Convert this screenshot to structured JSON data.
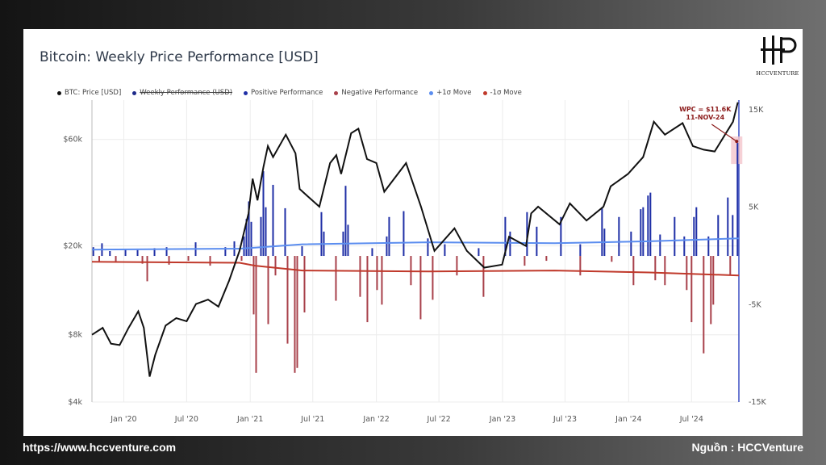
{
  "footer": {
    "url": "https://www.hccventure.com",
    "source": "Nguồn : HCCVenture"
  },
  "logo": {
    "text": "HCCVENTURE"
  },
  "colors": {
    "price": "#111111",
    "positive": "#1f2fa6",
    "negative": "#a8404a",
    "plus_sigma": "#5b8def",
    "minus_sigma": "#c0392b",
    "weekly": "#1d2a8a"
  },
  "chart_data": {
    "type": "line",
    "title": "Bitcoin: Weekly Price Performance [USD]",
    "legend": [
      {
        "key": "price",
        "label": "BTC: Price [USD]"
      },
      {
        "key": "weekly",
        "label": "Weekly Performance (USD)",
        "hidden": true
      },
      {
        "key": "positive",
        "label": "Positive Performance"
      },
      {
        "key": "negative",
        "label": "Negative Performance"
      },
      {
        "key": "plus_sigma",
        "label": "+1σ Move"
      },
      {
        "key": "minus_sigma",
        "label": "-1σ Move"
      }
    ],
    "legend_position": "top-left",
    "x_ticks": [
      "Jan '20",
      "Jul '20",
      "Jan '21",
      "Jul '21",
      "Jan '22",
      "Jul '22",
      "Jan '23",
      "Jul '23",
      "Jan '24",
      "Jul '24"
    ],
    "x_range": [
      "2019-10-01",
      "2024-11-15"
    ],
    "left_axis": {
      "scale": "log",
      "ticks": [
        {
          "v": 4000,
          "label": "$4k"
        },
        {
          "v": 8000,
          "label": "$8k"
        },
        {
          "v": 20000,
          "label": "$20k"
        },
        {
          "v": 60000,
          "label": "$60k"
        }
      ],
      "range": [
        4000,
        90000
      ]
    },
    "right_axis": {
      "ticks": [
        {
          "v": 15000,
          "label": "15K"
        },
        {
          "v": 5000,
          "label": "5K"
        },
        {
          "v": -5000,
          "label": "-5K"
        },
        {
          "v": -15000,
          "label": "-15K"
        }
      ],
      "range": [
        -15000,
        16000
      ]
    },
    "price_series": {
      "name": "BTC: Price [USD]",
      "points": [
        [
          "2019-10-01",
          8000
        ],
        [
          "2019-11-01",
          8600
        ],
        [
          "2019-11-25",
          7300
        ],
        [
          "2019-12-20",
          7200
        ],
        [
          "2020-01-15",
          8600
        ],
        [
          "2020-02-12",
          10200
        ],
        [
          "2020-02-28",
          8600
        ],
        [
          "2020-03-16",
          5200
        ],
        [
          "2020-04-01",
          6500
        ],
        [
          "2020-05-01",
          8800
        ],
        [
          "2020-06-01",
          9500
        ],
        [
          "2020-07-01",
          9200
        ],
        [
          "2020-07-28",
          11000
        ],
        [
          "2020-09-01",
          11500
        ],
        [
          "2020-10-01",
          10700
        ],
        [
          "2020-11-01",
          14000
        ],
        [
          "2020-12-01",
          19000
        ],
        [
          "2020-12-27",
          28000
        ],
        [
          "2021-01-08",
          40000
        ],
        [
          "2021-01-22",
          32000
        ],
        [
          "2021-02-08",
          45000
        ],
        [
          "2021-02-21",
          56000
        ],
        [
          "2021-03-08",
          50000
        ],
        [
          "2021-04-14",
          63000
        ],
        [
          "2021-05-12",
          52000
        ],
        [
          "2021-05-24",
          36000
        ],
        [
          "2021-06-20",
          33000
        ],
        [
          "2021-07-20",
          30000
        ],
        [
          "2021-08-20",
          47000
        ],
        [
          "2021-09-07",
          51000
        ],
        [
          "2021-09-21",
          42000
        ],
        [
          "2021-10-20",
          64000
        ],
        [
          "2021-11-10",
          67000
        ],
        [
          "2021-12-05",
          49000
        ],
        [
          "2022-01-01",
          47000
        ],
        [
          "2022-01-24",
          35000
        ],
        [
          "2022-03-28",
          47000
        ],
        [
          "2022-05-10",
          30000
        ],
        [
          "2022-06-18",
          19000
        ],
        [
          "2022-08-15",
          24000
        ],
        [
          "2022-09-20",
          19000
        ],
        [
          "2022-11-09",
          16000
        ],
        [
          "2022-12-31",
          16500
        ],
        [
          "2023-01-20",
          22000
        ],
        [
          "2023-03-10",
          20000
        ],
        [
          "2023-03-25",
          28000
        ],
        [
          "2023-04-14",
          30000
        ],
        [
          "2023-06-15",
          25000
        ],
        [
          "2023-07-15",
          31000
        ],
        [
          "2023-09-01",
          26000
        ],
        [
          "2023-10-20",
          30000
        ],
        [
          "2023-11-10",
          37000
        ],
        [
          "2023-12-30",
          42000
        ],
        [
          "2024-02-12",
          50000
        ],
        [
          "2024-03-14",
          72000
        ],
        [
          "2024-04-15",
          63000
        ],
        [
          "2024-06-05",
          71000
        ],
        [
          "2024-07-05",
          56000
        ],
        [
          "2024-08-05",
          54000
        ],
        [
          "2024-09-06",
          53000
        ],
        [
          "2024-10-29",
          72000
        ],
        [
          "2024-11-12",
          88000
        ]
      ]
    },
    "weekly_performance": {
      "positive": [
        [
          "2019-10-05",
          900
        ],
        [
          "2019-10-30",
          1300
        ],
        [
          "2019-11-22",
          500
        ],
        [
          "2020-01-06",
          700
        ],
        [
          "2020-02-10",
          600
        ],
        [
          "2020-03-30",
          800
        ],
        [
          "2020-05-04",
          900
        ],
        [
          "2020-07-27",
          1400
        ],
        [
          "2020-10-21",
          900
        ],
        [
          "2020-11-16",
          1500
        ],
        [
          "2020-12-14",
          2000
        ],
        [
          "2020-12-21",
          3800
        ],
        [
          "2020-12-28",
          5600
        ],
        [
          "2021-01-04",
          3500
        ],
        [
          "2021-02-01",
          4000
        ],
        [
          "2021-02-08",
          8700
        ],
        [
          "2021-02-15",
          5000
        ],
        [
          "2021-03-08",
          7300
        ],
        [
          "2021-04-12",
          4900
        ],
        [
          "2021-05-31",
          1000
        ],
        [
          "2021-07-26",
          4500
        ],
        [
          "2021-08-02",
          2500
        ],
        [
          "2021-09-27",
          2500
        ],
        [
          "2021-10-04",
          7200
        ],
        [
          "2021-10-11",
          3200
        ],
        [
          "2021-12-20",
          800
        ],
        [
          "2022-01-31",
          2000
        ],
        [
          "2022-02-07",
          4000
        ],
        [
          "2022-03-21",
          4600
        ],
        [
          "2022-05-30",
          1800
        ],
        [
          "2022-07-18",
          1200
        ],
        [
          "2022-10-24",
          800
        ],
        [
          "2023-01-09",
          4000
        ],
        [
          "2023-01-23",
          2500
        ],
        [
          "2023-03-13",
          4500
        ],
        [
          "2023-04-10",
          3000
        ],
        [
          "2023-06-19",
          4000
        ],
        [
          "2023-08-14",
          1200
        ],
        [
          "2023-10-16",
          5000
        ],
        [
          "2023-10-23",
          2800
        ],
        [
          "2023-12-04",
          4000
        ],
        [
          "2024-01-08",
          2500
        ],
        [
          "2024-02-05",
          4800
        ],
        [
          "2024-02-12",
          5000
        ],
        [
          "2024-02-26",
          6200
        ],
        [
          "2024-03-04",
          6500
        ],
        [
          "2024-04-01",
          2200
        ],
        [
          "2024-05-13",
          4000
        ],
        [
          "2024-06-10",
          2000
        ],
        [
          "2024-07-08",
          4000
        ],
        [
          "2024-07-15",
          5000
        ],
        [
          "2024-08-19",
          2000
        ],
        [
          "2024-09-16",
          4200
        ],
        [
          "2024-10-14",
          6000
        ],
        [
          "2024-10-28",
          4200
        ],
        [
          "2024-11-11",
          11600
        ]
      ],
      "negative": [
        [
          "2019-10-22",
          -600
        ],
        [
          "2019-12-09",
          -700
        ],
        [
          "2020-02-24",
          -800
        ],
        [
          "2020-03-09",
          -2600
        ],
        [
          "2020-05-11",
          -900
        ],
        [
          "2020-07-06",
          -500
        ],
        [
          "2020-09-07",
          -1000
        ],
        [
          "2020-12-07",
          -500
        ],
        [
          "2021-01-11",
          -6000
        ],
        [
          "2021-01-18",
          -12000
        ],
        [
          "2021-02-22",
          -7000
        ],
        [
          "2021-03-15",
          -2000
        ],
        [
          "2021-04-19",
          -9000
        ],
        [
          "2021-05-10",
          -12000
        ],
        [
          "2021-05-17",
          -11500
        ],
        [
          "2021-06-07",
          -5800
        ],
        [
          "2021-09-06",
          -4600
        ],
        [
          "2021-11-15",
          -4200
        ],
        [
          "2021-12-06",
          -6800
        ],
        [
          "2022-01-03",
          -3500
        ],
        [
          "2022-01-17",
          -5000
        ],
        [
          "2022-04-11",
          -3000
        ],
        [
          "2022-05-09",
          -6500
        ],
        [
          "2022-06-13",
          -4500
        ],
        [
          "2022-08-22",
          -2000
        ],
        [
          "2022-11-07",
          -4200
        ],
        [
          "2023-03-06",
          -1000
        ],
        [
          "2023-05-08",
          -500
        ],
        [
          "2023-08-14",
          -2000
        ],
        [
          "2023-11-13",
          -600
        ],
        [
          "2024-01-15",
          -3000
        ],
        [
          "2024-03-18",
          -2500
        ],
        [
          "2024-04-15",
          -3000
        ],
        [
          "2024-06-17",
          -3500
        ],
        [
          "2024-07-01",
          -6800
        ],
        [
          "2024-08-05",
          -10000
        ],
        [
          "2024-08-26",
          -7000
        ],
        [
          "2024-09-02",
          -5000
        ],
        [
          "2024-10-21",
          -2000
        ]
      ]
    },
    "plus_sigma_series": [
      [
        "2019-10-01",
        650
      ],
      [
        "2020-12-01",
        750
      ],
      [
        "2021-01-15",
        850
      ],
      [
        "2021-06-01",
        1200
      ],
      [
        "2022-06-01",
        1400
      ],
      [
        "2023-06-01",
        1300
      ],
      [
        "2024-03-01",
        1500
      ],
      [
        "2024-11-15",
        1800
      ]
    ],
    "minus_sigma_series": [
      [
        "2019-10-01",
        -600
      ],
      [
        "2020-12-01",
        -700
      ],
      [
        "2021-01-15",
        -1000
      ],
      [
        "2021-06-01",
        -1500
      ],
      [
        "2022-06-01",
        -1600
      ],
      [
        "2023-06-01",
        -1500
      ],
      [
        "2024-03-01",
        -1700
      ],
      [
        "2024-11-15",
        -2000
      ]
    ],
    "annotation": {
      "text_line1": "WPC = $11.6K",
      "text_line2": "11-NOV-24",
      "date": "2024-11-11",
      "value": 11600
    }
  }
}
